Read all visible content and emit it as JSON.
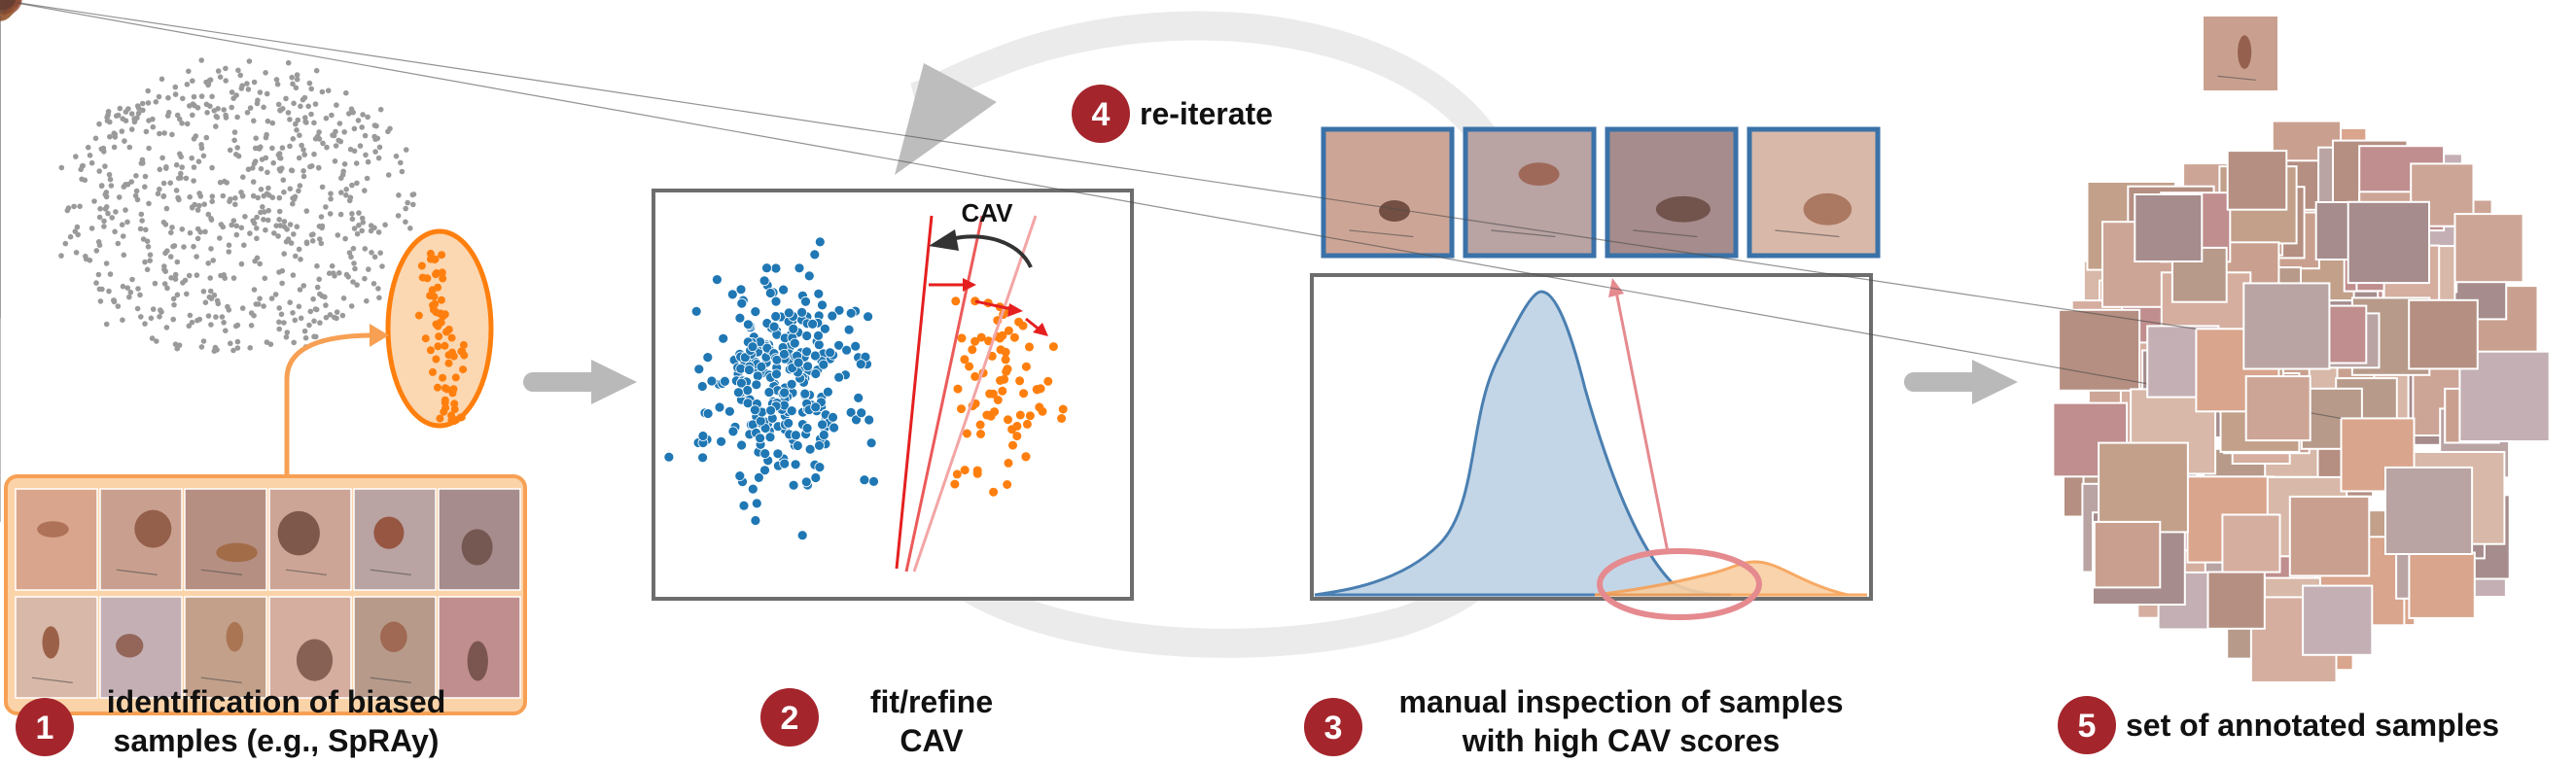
{
  "colors": {
    "badge": "#a4262c",
    "blue_points": "#1f77b4",
    "orange_points": "#ff7f0e",
    "orange_highlight": "#f7a054",
    "frame": "#6d6d6d",
    "arrow_gray": "#b9b9b9",
    "loop_gray": "#ebebeb",
    "cav_red": "#e51f1f",
    "pink": "#e58a8f",
    "blue_fill": "#c3d6e7",
    "blue_line": "#4a7fb1",
    "orange_fill": "#f8cfa2",
    "thumb_border": "#3a72a8",
    "scatter_gray": "#9a9a9a"
  },
  "steps": [
    {
      "number": "1",
      "lines": [
        "identification of biased",
        "samples (e.g., SpRAy)"
      ]
    },
    {
      "number": "2",
      "lines": [
        "fit/refine",
        "CAV"
      ]
    },
    {
      "number": "3",
      "lines": [
        "manual inspection of samples",
        "with high CAV scores"
      ]
    },
    {
      "number": "4",
      "lines": [
        "re-iterate"
      ]
    },
    {
      "number": "5",
      "lines": [
        "set of annotated samples"
      ]
    }
  ],
  "cav_label": "CAV",
  "icons": {
    "flow_arrow": "right-arrow-icon",
    "loop_arrow": "circular-arrow-icon",
    "rotate": "curved-arrow-icon"
  },
  "skin_tones": [
    "#d9a58c",
    "#c9a08f",
    "#b58f82",
    "#cda596",
    "#b9a3a3",
    "#a68c8c",
    "#d8b8a8",
    "#c4b0b4",
    "#c2a08a",
    "#d5aea0",
    "#b79a8a",
    "#c08e8e"
  ],
  "lesion_tones": [
    "#8a4a2e",
    "#7a3e2a",
    "#a0643e",
    "#6e4a3e",
    "#94503a",
    "#5a3a30"
  ]
}
